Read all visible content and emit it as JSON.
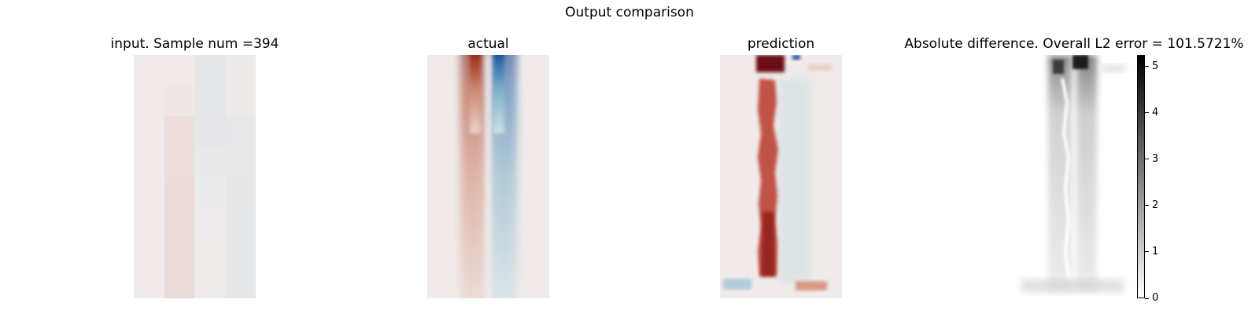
{
  "title": "Output comparison",
  "panels": {
    "input": "input. Sample num =394",
    "actual": "actual",
    "prediction": "prediction",
    "diff": "Absolute difference. Overall L2 error = 101.5721%"
  },
  "chart_data": [
    {
      "type": "heatmap",
      "title": "input. Sample num =394",
      "colormap": "diverging red-blue",
      "grid_rows": 8,
      "grid_cols": 4,
      "cell_colors": [
        [
          "#f0ebea",
          "#f0ebea",
          "#e4e5e8",
          "#efeaea"
        ],
        [
          "#f0ebea",
          "#efe7e6",
          "#e4e5e8",
          "#efeaea"
        ],
        [
          "#f0ebea",
          "#ecdedb",
          "#e6e6e9",
          "#e8e8ea"
        ],
        [
          "#f0ebea",
          "#ecdedb",
          "#eae9ea",
          "#e8e8ea"
        ],
        [
          "#f0ebea",
          "#ebdbd8",
          "#ecebeb",
          "#e7e7e9"
        ],
        [
          "#f0ebea",
          "#ebdbd8",
          "#edebeb",
          "#e5e6e8"
        ],
        [
          "#f0ebea",
          "#eadad7",
          "#eeebeb",
          "#e5e6e8"
        ],
        [
          "#f0ebea",
          "#eadad7",
          "#eeebeb",
          "#e5e6e8"
        ]
      ]
    },
    {
      "type": "heatmap",
      "title": "actual",
      "colormap": "diverging red-blue"
    },
    {
      "type": "heatmap",
      "title": "prediction",
      "colormap": "diverging red-blue"
    },
    {
      "type": "heatmap",
      "title": "Absolute difference. Overall L2 error = 101.5721%",
      "colormap": "greys",
      "colorbar": {
        "ticks": [
          0,
          1,
          2,
          3,
          4,
          5
        ],
        "range": [
          0,
          5.25
        ]
      }
    }
  ]
}
